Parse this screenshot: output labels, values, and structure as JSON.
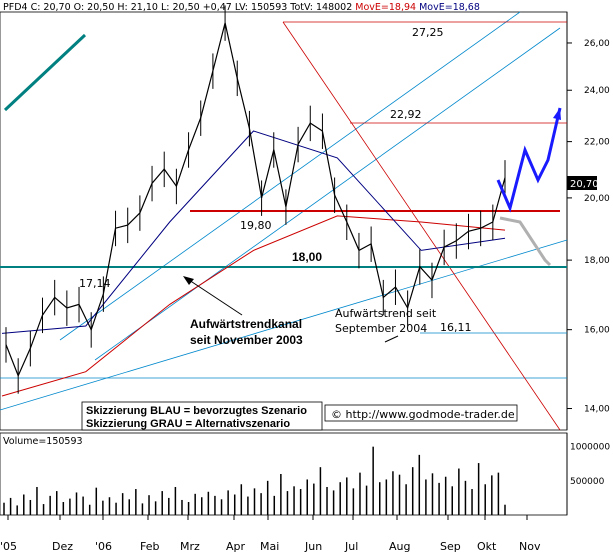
{
  "header": {
    "prefix": "PFD4 C: 20,70 O: 20,50 H: 21,10 L: 20,50 +0,47 LV: 150593 TotV: 148002",
    "movee1": "MovE=18,94",
    "movee2": "MovE=18,68"
  },
  "volume_label": "Volume=150593",
  "last_price_label": "20,70",
  "annotations": {
    "level_2725": "27,25",
    "level_2292": "22,92",
    "level_1980": "19,80",
    "level_1800": "18,00",
    "level_1714": "17,14",
    "level_1611": "16,11",
    "channel_line1": "Aufwärtstrendkanal",
    "channel_line2": "seit November  2003",
    "trend_line1": "Aufwärtstrend seit",
    "trend_line2": "September 2004",
    "legend_blue": "Skizzierung BLAU = bevorzugtes Szenario",
    "legend_grey": "Skizzierung GRAU = Alternativszenario",
    "copyright": "© http://www.godmode-trader.de"
  },
  "colors": {
    "price": "#000000",
    "ma_red": "#cc0000",
    "ma_blue": "#000080",
    "channel": "#0088cc",
    "horizontal_teal": "#008080",
    "horizontal_red": "#cc0000",
    "scenario_blue": "#1a1aff",
    "scenario_grey": "#b0b0b0",
    "volume": "#000000"
  },
  "chart_data": [
    {
      "type": "line",
      "title": "PFD4",
      "x_ticks": [
        "'05",
        "Dez",
        "'06",
        "Feb",
        "Mrz",
        "Apr",
        "Mai",
        "Jun",
        "Jul",
        "Aug",
        "Sep",
        "Okt",
        "Nov"
      ],
      "y_ticks": [
        "14,00",
        "16,00",
        "18,00",
        "20,00",
        "22,00",
        "24,00",
        "26,00"
      ],
      "ylim": [
        13.5,
        27.4
      ],
      "scale": "log",
      "series": [
        {
          "name": "",
          "kind": "close",
          "x": [
            "Nov 05",
            "Nov 05",
            "Dez 05",
            "Dez 05",
            "Dez 05",
            "Jan 06",
            "Jan 06",
            "Jan 06",
            "Jan 06",
            "Feb 06",
            "Feb 06",
            "Feb 06",
            "Mrz 06",
            "Mrz 06",
            "Mrz 06",
            "Apr 06",
            "Apr 06",
            "Apr 06",
            "Mai 06",
            "Mai 06",
            "Mai 06",
            "Mai 06",
            "Jun 06",
            "Jun 06",
            "Jun 06",
            "Jun 06",
            "Jul 06",
            "Jul 06",
            "Jul 06",
            "Jul 06",
            "Aug 06",
            "Aug 06",
            "Aug 06",
            "Aug 06",
            "Sep 06",
            "Sep 06",
            "Sep 06",
            "Sep 06",
            "Okt 06",
            "Okt 06",
            "Okt 06",
            "Okt 06"
          ],
          "values": [
            15.6,
            14.8,
            15.5,
            16.4,
            16.9,
            16.6,
            16.7,
            16.0,
            17.0,
            19.0,
            19.1,
            19.5,
            20.5,
            21.0,
            20.4,
            21.7,
            22.9,
            24.8,
            26.9,
            24.5,
            22.5,
            20.0,
            21.7,
            19.7,
            21.9,
            22.7,
            22.4,
            20.1,
            19.2,
            18.3,
            18.5,
            16.9,
            17.2,
            16.6,
            17.8,
            17.4,
            18.4,
            18.6,
            18.9,
            19.0,
            19.2,
            20.7
          ]
        },
        {
          "name": "",
          "kind": "moving-average-red",
          "x": [
            "Nov 05",
            "Jan 06",
            "Mrz 06",
            "Mai 06",
            "Jul 06",
            "Aug 06",
            "Okt 06"
          ],
          "values": [
            14.3,
            14.9,
            16.7,
            18.3,
            19.4,
            19.2,
            18.94
          ]
        },
        {
          "name": "",
          "kind": "moving-average-blue",
          "x": [
            "Nov 05",
            "Jan 06",
            "Mrz 06",
            "Mai 06",
            "Jun 06",
            "Aug 06",
            "Okt 06"
          ],
          "values": [
            15.9,
            16.1,
            19.2,
            22.4,
            21.4,
            18.3,
            18.68
          ]
        }
      ],
      "levels": [
        27.25,
        22.92,
        19.8,
        18.0,
        16.11
      ]
    },
    {
      "type": "bar",
      "title": "Volume",
      "y_ticks": [
        "500000",
        "1000000"
      ],
      "ylim": [
        0,
        1200000
      ],
      "values_note": "",
      "values": [
        180000,
        250000,
        140000,
        300000,
        220000,
        410000,
        160000,
        280000,
        350000,
        190000,
        240000,
        330000,
        270000,
        150000,
        400000,
        210000,
        260000,
        180000,
        320000,
        230000,
        380000,
        170000,
        290000,
        200000,
        350000,
        250000,
        410000,
        220000,
        190000,
        310000,
        260000,
        340000,
        280000,
        230000,
        360000,
        300000,
        450000,
        270000,
        390000,
        320000,
        500000,
        280000,
        600000,
        350000,
        420000,
        380000,
        520000,
        460000,
        700000,
        410000,
        360000,
        480000,
        550000,
        390000,
        620000,
        430000,
        1000000,
        480000,
        520000,
        640000,
        590000,
        450000,
        700000,
        880000,
        520000,
        610000,
        470000,
        560000,
        420000,
        680000,
        500000,
        380000,
        760000,
        450000,
        580000,
        620000,
        150593
      ]
    }
  ]
}
